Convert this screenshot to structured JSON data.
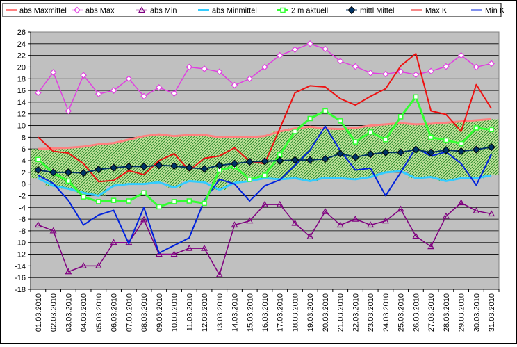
{
  "chart_data": {
    "type": "line",
    "title": "",
    "xlabel": "",
    "ylabel": "",
    "ylim": [
      -18,
      26
    ],
    "ytick_step": 2,
    "grid": true,
    "legend_position": "top",
    "categories": [
      "01.03.2010",
      "02.03.2010",
      "03.03.2010",
      "04.03.2010",
      "05.03.2010",
      "06.03.2010",
      "07.03.2010",
      "08.03.2010",
      "09.03.2010",
      "10.03.2010",
      "11.03.2010",
      "12.03.2010",
      "13.03.2010",
      "14.03.2010",
      "15.03.2010",
      "16.03.2010",
      "17.03.2010",
      "18.03.2010",
      "19.03.2010",
      "20.03.2010",
      "21.03.2010",
      "22.03.2010",
      "23.03.2010",
      "24.03.2010",
      "25.03.2010",
      "26.03.2010",
      "27.03.2010",
      "28.03.2010",
      "29.03.2010",
      "30.03.2010",
      "31.03.2010"
    ],
    "band": {
      "upper_series": "abs Maxmittel",
      "lower_series": "abs Minmittel",
      "fill": "#a6d27a"
    },
    "series": [
      {
        "name": "abs Maxmittel",
        "color": "#ff8080",
        "marker": "line",
        "values": [
          6.0,
          6.1,
          6.2,
          6.4,
          6.8,
          7.0,
          7.6,
          8.2,
          8.5,
          8.2,
          8.4,
          8.4,
          8.0,
          8.1,
          8.0,
          8.2,
          9.0,
          9.5,
          9.8,
          9.5,
          9.4,
          9.6,
          10.0,
          10.2,
          10.4,
          10.2,
          10.3,
          10.5,
          10.7,
          10.9,
          11.1
        ]
      },
      {
        "name": "abs Max",
        "color": "#e040e0",
        "marker": "diamond-open",
        "values": [
          15.6,
          19.1,
          12.5,
          18.6,
          15.4,
          16.0,
          18.0,
          15.0,
          16.5,
          15.5,
          20.0,
          19.7,
          19.2,
          16.9,
          18.0,
          20.0,
          22.0,
          23.0,
          24.0,
          23.1,
          21.0,
          20.1,
          19.0,
          18.8,
          19.2,
          18.7,
          19.3,
          20.1,
          22.0,
          20.0,
          20.6
        ]
      },
      {
        "name": "abs Min",
        "color": "#800080",
        "marker": "triangle-open",
        "values": [
          -7.0,
          -8.0,
          -15.0,
          -14.0,
          -14.0,
          -10.0,
          -10.0,
          -6.1,
          -12.0,
          -12.0,
          -11.0,
          -11.0,
          -15.5,
          -7.0,
          -6.3,
          -3.5,
          -3.5,
          -6.7,
          -9.0,
          -4.7,
          -7.0,
          -6.0,
          -7.0,
          -6.3,
          -4.3,
          -8.9,
          -10.7,
          -5.5,
          -3.2,
          -4.6,
          -5.1
        ]
      },
      {
        "name": "abs Minmittel",
        "color": "#33ccff",
        "marker": "line",
        "values": [
          1.0,
          -0.3,
          -0.8,
          -1.5,
          -2.0,
          -0.3,
          0.0,
          0.0,
          0.3,
          -0.6,
          0.5,
          0.3,
          -1.0,
          0.2,
          0.5,
          1.0,
          0.8,
          1.0,
          0.5,
          1.1,
          1.0,
          0.8,
          1.2,
          2.0,
          2.2,
          1.0,
          1.2,
          0.5,
          1.0,
          1.0,
          1.5
        ]
      },
      {
        "name": "2 m aktuell",
        "color": "#33ff33",
        "marker": "square-open",
        "values": [
          4.2,
          1.9,
          0.5,
          -2.2,
          -3.0,
          -2.8,
          -2.9,
          -1.5,
          -3.9,
          -3.0,
          -2.9,
          -3.3,
          2.4,
          3.0,
          0.8,
          1.5,
          5.0,
          9.0,
          11.2,
          12.5,
          10.8,
          7.2,
          8.9,
          7.6,
          11.5,
          14.9,
          8.0,
          7.5,
          6.9,
          9.6,
          9.3
        ]
      },
      {
        "name": "mittl Mittel",
        "color": "#003366",
        "marker": "diamond-filled",
        "values": [
          2.4,
          2.0,
          2.0,
          1.9,
          2.5,
          2.8,
          3.0,
          3.0,
          3.2,
          3.1,
          2.8,
          2.6,
          3.2,
          3.5,
          3.8,
          3.9,
          4.0,
          4.1,
          4.1,
          4.3,
          5.2,
          4.6,
          5.1,
          5.4,
          5.4,
          5.9,
          5.4,
          5.8,
          5.6,
          5.9,
          6.3
        ]
      },
      {
        "name": "Max K",
        "color": "#ee1111",
        "marker": "line",
        "values": [
          8.0,
          5.6,
          5.3,
          3.5,
          0.4,
          0.6,
          2.3,
          1.6,
          4.0,
          5.2,
          2.3,
          4.4,
          4.8,
          6.2,
          3.9,
          3.5,
          9.5,
          15.6,
          16.8,
          16.6,
          14.6,
          13.5,
          15.0,
          16.3,
          20.2,
          22.3,
          12.5,
          11.9,
          9.0,
          17.0,
          12.9
        ]
      },
      {
        "name": "Min K",
        "color": "#0022dd",
        "marker": "line",
        "values": [
          1.5,
          0.1,
          -2.8,
          -7.0,
          -5.3,
          -4.5,
          -10.2,
          -4.0,
          -11.8,
          -10.5,
          -9.2,
          -2.8,
          0.8,
          0.0,
          -2.9,
          -0.3,
          0.7,
          3.2,
          5.8,
          9.9,
          5.7,
          2.4,
          2.7,
          -2.0,
          2.0,
          6.2,
          4.8,
          5.5,
          3.5,
          -0.2,
          5.1
        ]
      }
    ]
  }
}
